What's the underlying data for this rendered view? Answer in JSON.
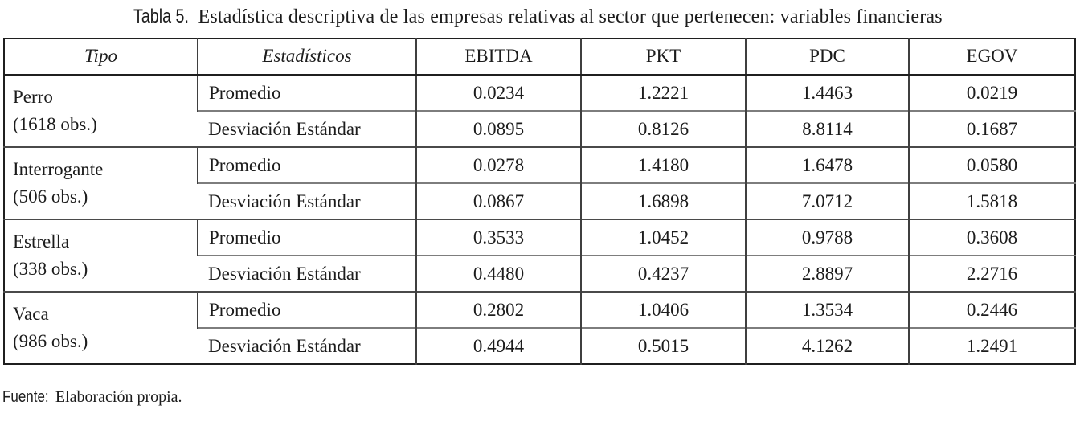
{
  "caption": {
    "label": "Tabla 5.",
    "text": " Estadística descriptiva de las empresas relativas al sector que pertenecen: variables financieras"
  },
  "table": {
    "headers": {
      "tipo": "Tipo",
      "estadisticos": "Estadísticos",
      "ebitda": "EBITDA",
      "pkt": "PKT",
      "pdc": "PDC",
      "egov": "EGOV"
    },
    "groups": [
      {
        "tipo": "Perro",
        "obs": "(1618 obs.)",
        "rows": [
          {
            "stat": "Promedio",
            "values": [
              "0.0234",
              "1.2221",
              "1.4463",
              "0.0219"
            ]
          },
          {
            "stat": "Desviación Estándar",
            "values": [
              "0.0895",
              "0.8126",
              "8.8114",
              "0.1687"
            ]
          }
        ]
      },
      {
        "tipo": "Interrogante",
        "obs": "(506 obs.)",
        "rows": [
          {
            "stat": "Promedio",
            "values": [
              "0.0278",
              "1.4180",
              "1.6478",
              "0.0580"
            ]
          },
          {
            "stat": "Desviación Estándar",
            "values": [
              "0.0867",
              "1.6898",
              "7.0712",
              "1.5818"
            ]
          }
        ]
      },
      {
        "tipo": "Estrella",
        "obs": "(338 obs.)",
        "rows": [
          {
            "stat": "Promedio",
            "values": [
              "0.3533",
              "1.0452",
              "0.9788",
              "0.3608"
            ]
          },
          {
            "stat": "Desviación Estándar",
            "values": [
              "0.4480",
              "0.4237",
              "2.8897",
              "2.2716"
            ]
          }
        ]
      },
      {
        "tipo": "Vaca",
        "obs": "(986 obs.)",
        "rows": [
          {
            "stat": "Promedio",
            "values": [
              "0.2802",
              "1.0406",
              "1.3534",
              "0.2446"
            ]
          },
          {
            "stat": "Desviación Estándar",
            "values": [
              "0.4944",
              "0.5015",
              "4.1262",
              "1.2491"
            ]
          }
        ]
      }
    ]
  },
  "footer": {
    "label": "Fuente:",
    "text": "Elaboración propia."
  },
  "colors": {
    "text": "#1c1c1c",
    "border_dark": "#1f1f1f",
    "border_mid": "#4a4a4a",
    "border_light": "#7d7d7d"
  }
}
